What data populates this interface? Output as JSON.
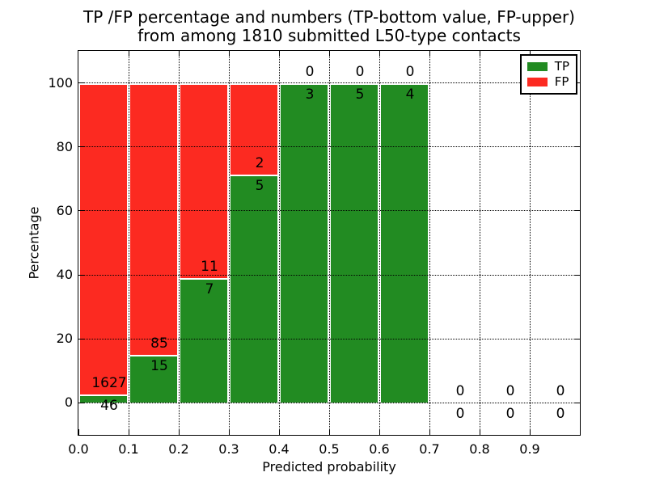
{
  "chart_data": {
    "type": "bar",
    "stacked": true,
    "normalized_to_percent": true,
    "title_line1": "TP /FP percentage and numbers (TP-bottom value, FP-upper)",
    "title_line2": "from among 1810 submitted L50-type contacts",
    "xlabel": "Predicted probability",
    "ylabel": "Percentage",
    "xlim": [
      0.0,
      1.0
    ],
    "ylim": [
      -10,
      110
    ],
    "grid": true,
    "legend_position": "upper-right",
    "x_tick_labels": [
      "0.0",
      "0.1",
      "0.2",
      "0.3",
      "0.4",
      "0.5",
      "0.6",
      "0.7",
      "0.8",
      "0.9"
    ],
    "y_ticks": [
      0,
      20,
      40,
      60,
      80,
      100
    ],
    "total_contacts": 1810,
    "bins": [
      {
        "x0": 0.0,
        "x1": 0.1,
        "tp": 46,
        "fp": 1627
      },
      {
        "x0": 0.1,
        "x1": 0.2,
        "tp": 15,
        "fp": 85
      },
      {
        "x0": 0.2,
        "x1": 0.3,
        "tp": 7,
        "fp": 11
      },
      {
        "x0": 0.3,
        "x1": 0.4,
        "tp": 5,
        "fp": 2
      },
      {
        "x0": 0.4,
        "x1": 0.5,
        "tp": 3,
        "fp": 0
      },
      {
        "x0": 0.5,
        "x1": 0.6,
        "tp": 5,
        "fp": 0
      },
      {
        "x0": 0.6,
        "x1": 0.7,
        "tp": 4,
        "fp": 0
      },
      {
        "x0": 0.7,
        "x1": 0.8,
        "tp": 0,
        "fp": 0
      },
      {
        "x0": 0.8,
        "x1": 0.9,
        "tp": 0,
        "fp": 0
      },
      {
        "x0": 0.9,
        "x1": 1.0,
        "tp": 0,
        "fp": 0
      }
    ],
    "legend": [
      {
        "label": "TP",
        "color": "#228b22"
      },
      {
        "label": "FP",
        "color": "#fc2a21"
      }
    ],
    "colors": {
      "tp": "#228b22",
      "fp": "#fc2a21",
      "bar_edge": "#ffffff",
      "grid": "#000000",
      "text": "#000000",
      "background": "#ffffff"
    }
  }
}
